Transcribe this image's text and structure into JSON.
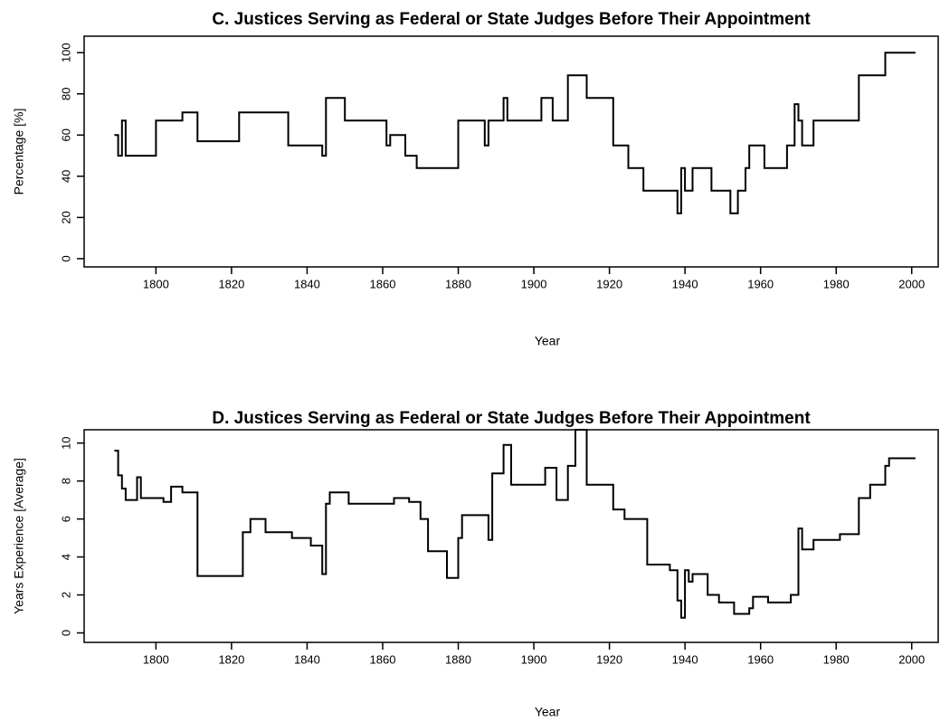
{
  "chart_data": [
    {
      "type": "line",
      "title": "C. Justices Serving as Federal or State Judges Before Their Appointment",
      "xlabel": "Year",
      "ylabel": "Percentage [%]",
      "color": "#000000",
      "xlim": [
        1781,
        2007
      ],
      "ylim": [
        -4,
        108
      ],
      "xticks": [
        1800,
        1820,
        1840,
        1860,
        1880,
        1900,
        1920,
        1940,
        1960,
        1980,
        2000
      ],
      "yticks": [
        0,
        20,
        40,
        60,
        80,
        100
      ],
      "x": [
        1789,
        1790,
        1790,
        1791,
        1791,
        1792,
        1792,
        1800,
        1800,
        1807,
        1807,
        1811,
        1811,
        1822,
        1822,
        1835,
        1835,
        1844,
        1844,
        1845,
        1845,
        1850,
        1850,
        1861,
        1861,
        1862,
        1862,
        1866,
        1866,
        1869,
        1869,
        1880,
        1880,
        1887,
        1887,
        1888,
        1888,
        1892,
        1892,
        1893,
        1893,
        1902,
        1902,
        1905,
        1905,
        1909,
        1909,
        1914,
        1914,
        1921,
        1921,
        1925,
        1925,
        1929,
        1929,
        1938,
        1938,
        1939,
        1939,
        1940,
        1940,
        1942,
        1942,
        1947,
        1947,
        1952,
        1952,
        1954,
        1954,
        1956,
        1956,
        1957,
        1957,
        1961,
        1961,
        1967,
        1967,
        1969,
        1969,
        1970,
        1970,
        1971,
        1971,
        1974,
        1974,
        1986,
        1986,
        1993,
        1993,
        2001
      ],
      "values": [
        60,
        60,
        50,
        50,
        67,
        67,
        50,
        50,
        67,
        67,
        71,
        71,
        57,
        57,
        71,
        71,
        55,
        55,
        50,
        50,
        78,
        78,
        67,
        67,
        55,
        55,
        60,
        60,
        50,
        50,
        44,
        44,
        67,
        67,
        55,
        55,
        67,
        67,
        78,
        78,
        67,
        67,
        78,
        78,
        67,
        67,
        89,
        89,
        78,
        78,
        55,
        55,
        44,
        44,
        33,
        33,
        22,
        22,
        44,
        44,
        33,
        33,
        44,
        44,
        33,
        33,
        22,
        22,
        33,
        33,
        44,
        44,
        55,
        55,
        44,
        44,
        55,
        55,
        75,
        75,
        67,
        67,
        55,
        55,
        67,
        67,
        89,
        89,
        100,
        100
      ]
    },
    {
      "type": "line",
      "title": "D. Justices Serving as Federal or State Judges Before Their Appointment",
      "xlabel": "Year",
      "ylabel": "Years Experience [Average]",
      "color": "#000000",
      "xlim": [
        1781,
        2007
      ],
      "ylim": [
        -0.5,
        10.7
      ],
      "xticks": [
        1800,
        1820,
        1840,
        1860,
        1880,
        1900,
        1920,
        1940,
        1960,
        1980,
        2000
      ],
      "yticks": [
        0,
        2,
        4,
        6,
        8,
        10
      ],
      "x": [
        1789,
        1790,
        1790,
        1791,
        1791,
        1792,
        1792,
        1795,
        1795,
        1796,
        1796,
        1802,
        1802,
        1804,
        1804,
        1807,
        1807,
        1811,
        1811,
        1823,
        1823,
        1825,
        1825,
        1829,
        1829,
        1836,
        1836,
        1841,
        1841,
        1844,
        1844,
        1845,
        1845,
        1846,
        1846,
        1851,
        1851,
        1863,
        1863,
        1867,
        1867,
        1870,
        1870,
        1872,
        1872,
        1877,
        1877,
        1880,
        1880,
        1881,
        1881,
        1888,
        1888,
        1889,
        1889,
        1892,
        1892,
        1894,
        1894,
        1903,
        1903,
        1906,
        1906,
        1909,
        1909,
        1911,
        1911,
        1914,
        1914,
        1921,
        1921,
        1924,
        1924,
        1930,
        1930,
        1936,
        1936,
        1938,
        1938,
        1939,
        1939,
        1940,
        1940,
        1941,
        1941,
        1942,
        1942,
        1946,
        1946,
        1949,
        1949,
        1953,
        1953,
        1957,
        1957,
        1958,
        1958,
        1962,
        1962,
        1968,
        1968,
        1970,
        1970,
        1971,
        1971,
        1974,
        1974,
        1981,
        1981,
        1986,
        1986,
        1989,
        1989,
        1993,
        1993,
        1994,
        1994,
        2001
      ],
      "values": [
        9.6,
        9.6,
        8.3,
        8.3,
        7.6,
        7.6,
        7.0,
        7.0,
        8.2,
        8.2,
        7.1,
        7.1,
        6.9,
        6.9,
        7.7,
        7.7,
        7.4,
        7.4,
        3.0,
        3.0,
        5.3,
        5.3,
        6.0,
        6.0,
        5.3,
        5.3,
        5.0,
        5.0,
        4.6,
        4.6,
        3.1,
        3.1,
        6.8,
        6.8,
        7.4,
        7.4,
        6.8,
        6.8,
        7.1,
        7.1,
        6.9,
        6.9,
        6.0,
        6.0,
        4.3,
        4.3,
        2.9,
        2.9,
        5.0,
        5.0,
        6.2,
        6.2,
        4.9,
        4.9,
        8.4,
        8.4,
        9.9,
        9.9,
        7.8,
        7.8,
        8.7,
        8.7,
        7.0,
        7.0,
        8.8,
        8.8,
        10.7,
        10.7,
        7.8,
        7.8,
        6.5,
        6.5,
        6.0,
        6.0,
        3.6,
        3.6,
        3.3,
        3.3,
        1.7,
        1.7,
        0.8,
        0.8,
        3.3,
        3.3,
        2.7,
        2.7,
        3.1,
        3.1,
        2.0,
        2.0,
        1.6,
        1.6,
        1.0,
        1.0,
        1.3,
        1.3,
        1.9,
        1.9,
        1.6,
        1.6,
        2.0,
        2.0,
        5.5,
        5.5,
        4.4,
        4.4,
        4.9,
        4.9,
        5.2,
        5.2,
        7.1,
        7.1,
        7.8,
        7.8,
        8.8,
        8.8,
        9.2,
        9.2
      ]
    }
  ]
}
